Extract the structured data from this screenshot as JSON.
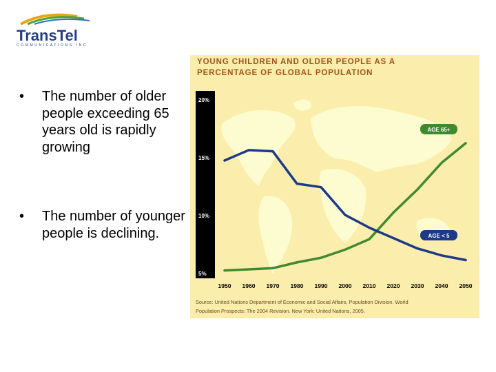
{
  "logo": {
    "name": "TransTel",
    "subtitle": "COMMUNICATIONS INC"
  },
  "bullets": [
    {
      "marker": "•",
      "text": "The number of older people exceeding 65 years old is rapidly growing"
    },
    {
      "marker": "•",
      "text": "The number of younger people is declining."
    }
  ],
  "colors": {
    "background": "#fbedab",
    "land": "#fdfbd0",
    "axis_bar": "#000000",
    "older": "#3f8a2f",
    "younger": "#1c3a88",
    "title": "#a0541a"
  },
  "chart_data": {
    "type": "line",
    "title_line1": "YOUNG CHILDREN AND OLDER PEOPLE AS A",
    "title_line2": "PERCENTAGE OF GLOBAL POPULATION",
    "x": [
      1950,
      1960,
      1970,
      1980,
      1990,
      2000,
      2010,
      2020,
      2030,
      2040,
      2050
    ],
    "x_tick_labels": [
      "1950",
      "1960",
      "1970",
      "1980",
      "1990",
      "2000",
      "2010",
      "2020",
      "2030",
      "2040",
      "2050"
    ],
    "y_tick_labels": [
      "20%",
      "15%",
      "10%",
      "5%"
    ],
    "y_ticks": [
      20,
      15,
      10,
      5
    ],
    "ylim": [
      5,
      20
    ],
    "series": [
      {
        "name": "AGE 65+",
        "color": "#3f8a2f",
        "values": [
          5.2,
          5.3,
          5.4,
          5.9,
          6.3,
          7.0,
          7.9,
          10.2,
          12.2,
          14.5,
          16.2
        ]
      },
      {
        "name": "AGE < 5",
        "color": "#1c3a88",
        "values": [
          14.7,
          15.6,
          15.5,
          12.7,
          12.4,
          10.0,
          8.9,
          8.0,
          7.1,
          6.5,
          6.1
        ]
      }
    ],
    "grid": false,
    "legend": "inline labels at the end of each line",
    "source_line1": "Source: United Nations Department of Economic and Social Affairs, Population Division. World",
    "source_line2": "Population Prospects: The 2004 Revision. New York: United Nations, 2005."
  }
}
